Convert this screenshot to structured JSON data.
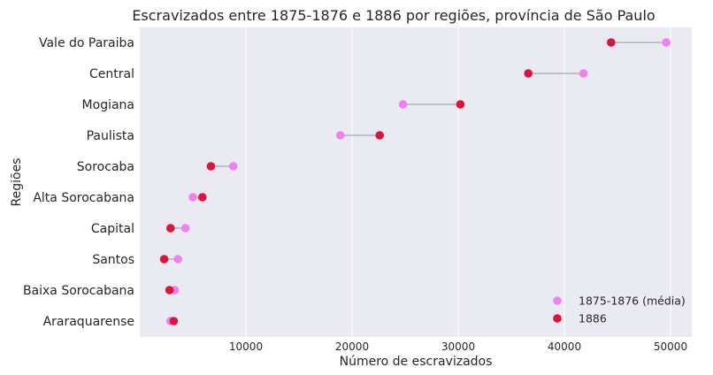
{
  "chart_data": {
    "type": "scatter",
    "subtype": "dumbbell",
    "title": "Escravizados entre 1875-1876 e 1886 por regiões, província de São Paulo",
    "xlabel": "Número de escravizados",
    "ylabel": "Regiões",
    "xlim": [
      0,
      52000
    ],
    "xticks": [
      10000,
      20000,
      30000,
      40000,
      50000
    ],
    "xtick_labels": [
      "10000",
      "20000",
      "30000",
      "40000",
      "50000"
    ],
    "grid": "vertical",
    "legend_position": "bottom-right",
    "categories": [
      "Vale do Paraiba",
      "Central",
      "Mogiana",
      "Paulista",
      "Sorocaba",
      "Alta Sorocabana",
      "Capital",
      "Santos",
      "Baixa Sorocabana",
      "Araraquarense"
    ],
    "series": [
      {
        "name": "1875-1876 (média)",
        "color": "#ee82ee",
        "values": [
          49600,
          41800,
          24800,
          18900,
          8800,
          5000,
          4300,
          3600,
          3300,
          2900
        ]
      },
      {
        "name": "1886",
        "color": "#dc143c",
        "values": [
          44400,
          36600,
          30200,
          22600,
          6700,
          5900,
          2900,
          2300,
          2800,
          3200
        ]
      }
    ],
    "connector_color": "#c0c0c8"
  }
}
